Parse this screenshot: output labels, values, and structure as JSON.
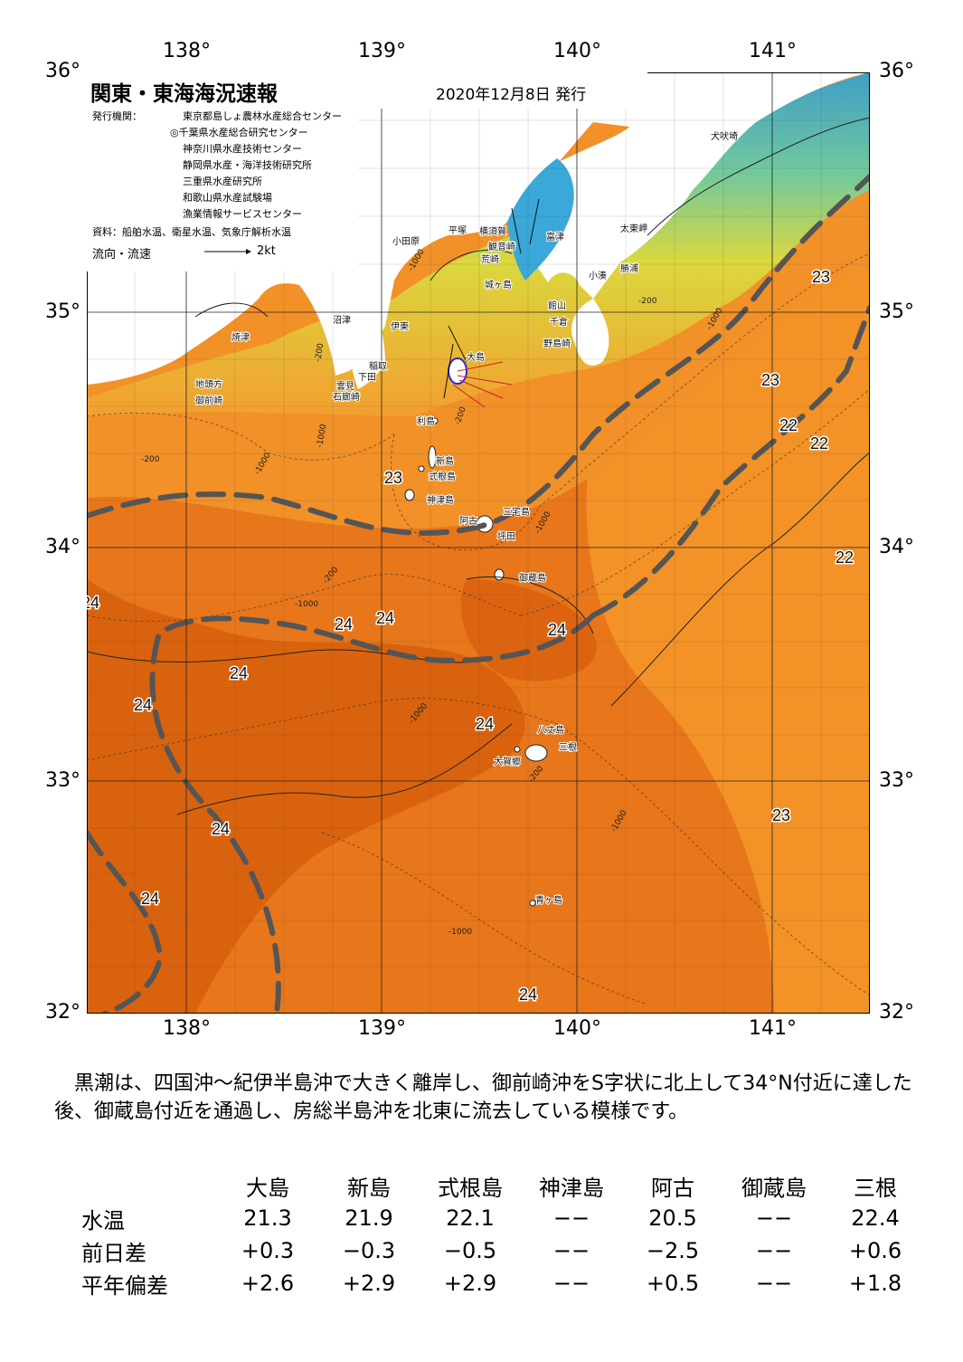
{
  "map": {
    "title": "関東・東海海況速報",
    "issue_date": "2020年12月8日 発行",
    "issuers_label": "発行機関：",
    "issuers": [
      "東京都島しょ農林水産総合センター",
      "◎千葉県水産総合研究センター",
      "神奈川県水産技術センター",
      "静岡県水産・海洋技術研究所",
      "三重県水産研究所",
      "和歌山県水産試験場",
      "漁業情報サービスセンター"
    ],
    "sources": "資料：船舶水温、衛星水温、気象庁解析水温",
    "flow_legend": "流向・流速",
    "flow_speed": "2kt",
    "lon_labels": [
      "138°",
      "139°",
      "140°",
      "141°"
    ],
    "lat_labels": [
      "36°",
      "35°",
      "34°",
      "33°",
      "32°"
    ],
    "sst_labels": [
      "23",
      "23",
      "22",
      "22",
      "22",
      "23",
      "24",
      "24",
      "24",
      "24",
      "24",
      "24",
      "24",
      "24",
      "23",
      "24",
      "24"
    ],
    "contour_labels": [
      "-1000",
      "-200",
      "-200",
      "-1000",
      "-200",
      "-1000",
      "-200",
      "-1000",
      "-1000",
      "-200",
      "-1000",
      "-1000",
      "-200",
      "-1000",
      "-1000"
    ],
    "places": [
      "犬吠埼",
      "太東岬",
      "勝浦",
      "小湊",
      "館山",
      "千倉",
      "野島崎",
      "富津",
      "観音崎",
      "横須賀",
      "平塚",
      "荒崎",
      "小田原",
      "城ヶ島",
      "大島",
      "伊東",
      "沼津",
      "焼津",
      "稲取",
      "下田",
      "雲見",
      "石廊崎",
      "地頭方",
      "御前崎",
      "利島",
      "新島",
      "式根島",
      "神津島",
      "三宅島",
      "阿古",
      "坪田",
      "御蔵島",
      "八丈島",
      "三根",
      "大賀郷",
      "青ヶ島"
    ]
  },
  "summary": "黒潮は、四国沖～紀伊半島沖で大きく離岸し、御前崎沖をS字状に北上して34°N付近に達した後、御蔵島付近を通過し、房総半島沖を北東に流去している模様です。",
  "sst_table": {
    "columns": [
      "大島",
      "新島",
      "式根島",
      "神津島",
      "阿古",
      "御蔵島",
      "三根"
    ],
    "rows": [
      {
        "label": "水温",
        "values": [
          "21.3",
          "21.9",
          "22.1",
          "−−",
          "20.5",
          "−−",
          "22.4"
        ]
      },
      {
        "label": "前日差",
        "values": [
          "+0.3",
          "−0.3",
          "−0.5",
          "−−",
          "−2.5",
          "−−",
          "+0.6"
        ]
      },
      {
        "label": "平年偏差",
        "values": [
          "+2.6",
          "+2.9",
          "+2.9",
          "−−",
          "+0.5",
          "−−",
          "+1.8"
        ]
      }
    ]
  },
  "colors": {
    "warm": "#e06a10",
    "mid": "#ee8418",
    "cool": "#f59a2a",
    "land": "#ffffff",
    "kuroshio_axis": "#505050"
  }
}
